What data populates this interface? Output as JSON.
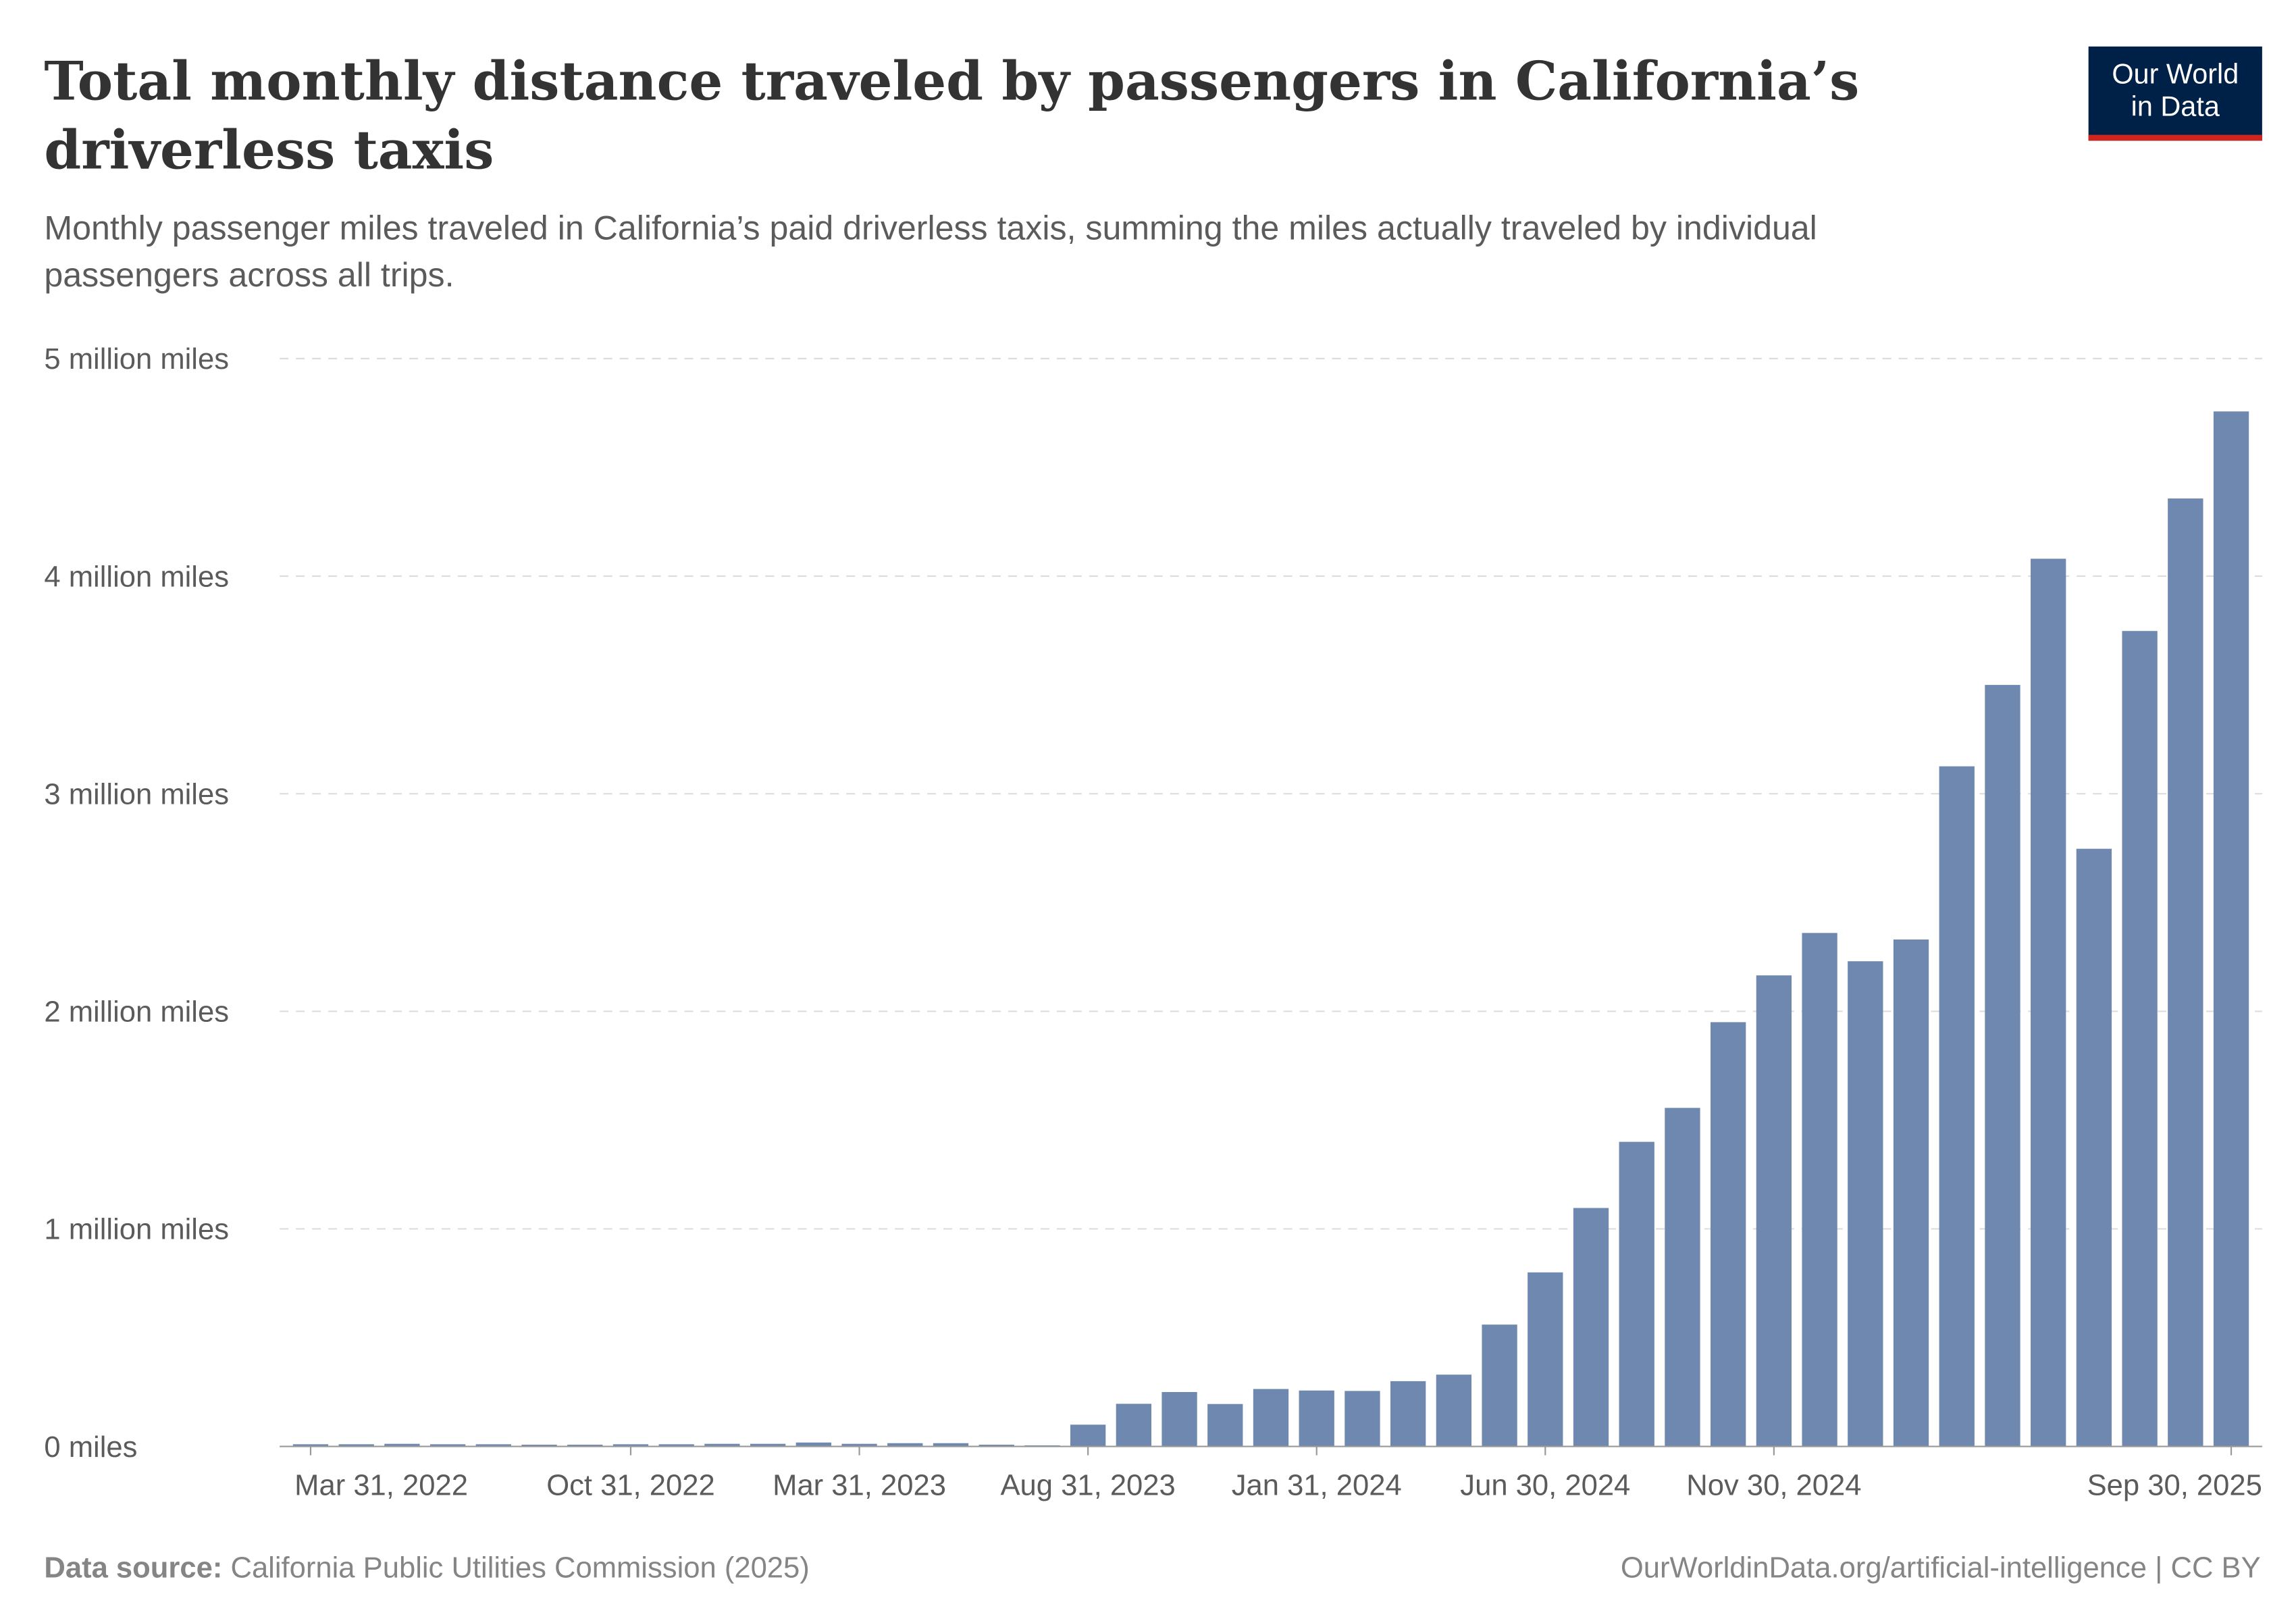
{
  "chart_data": {
    "type": "bar",
    "title": [
      "Total monthly distance traveled by passengers in California’s",
      "driverless taxis"
    ],
    "subtitle": [
      "Monthly passenger miles traveled in California’s paid driverless taxis, summing the miles actually traveled by individual",
      "passengers across all trips."
    ],
    "logo": [
      "Our World",
      "in Data"
    ],
    "source_label": "Data source:",
    "source": "California Public Utilities Commission (2025)",
    "credit": "OurWorldinData.org/artificial-intelligence | CC BY",
    "categories": [
      "Mar 31, 2022",
      null,
      null,
      null,
      null,
      null,
      null,
      "Oct 31, 2022",
      null,
      null,
      null,
      null,
      "Mar 31, 2023",
      null,
      null,
      null,
      null,
      "Aug 31, 2023",
      null,
      null,
      null,
      null,
      "Jan 31, 2024",
      null,
      null,
      null,
      null,
      "Jun 30, 2024",
      null,
      null,
      null,
      null,
      "Nov 30, 2024",
      null,
      null,
      null,
      null,
      null,
      null,
      null,
      null,
      null,
      "Sep 30, 2025"
    ],
    "values": [
      10000,
      10000,
      12000,
      10000,
      10000,
      8000,
      8000,
      10000,
      10000,
      12000,
      12000,
      18000,
      12000,
      15000,
      15000,
      8000,
      5000,
      100000,
      196000,
      250000,
      195000,
      264000,
      257000,
      255000,
      300000,
      330000,
      560000,
      800000,
      1096000,
      1400000,
      1556000,
      1950000,
      2165000,
      2360000,
      2230000,
      2330000,
      3126000,
      3500000,
      4080000,
      2747000,
      3748000,
      4357000,
      4757000
    ],
    "color": "#6f88b0",
    "ylim": [
      0,
      5000000
    ],
    "yticks": [
      {
        "value": 0,
        "label": "0 miles"
      },
      {
        "value": 1000000,
        "label": "1 million miles"
      },
      {
        "value": 2000000,
        "label": "2 million miles"
      },
      {
        "value": 3000000,
        "label": "3 million miles"
      },
      {
        "value": 4000000,
        "label": "4 million miles"
      },
      {
        "value": 5000000,
        "label": "5 million miles"
      }
    ],
    "grid": true
  }
}
